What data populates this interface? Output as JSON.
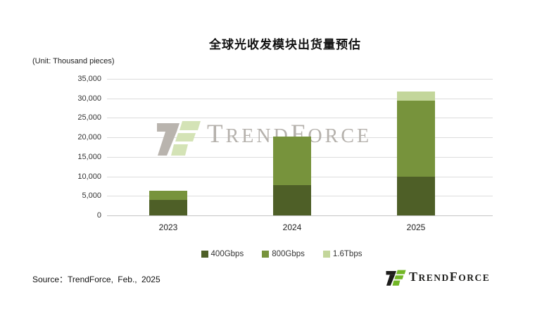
{
  "source_text": "Source：TrendForce, Feb., 2025",
  "watermark": {
    "parts": [
      "T",
      "REND",
      "F",
      "ORCE"
    ]
  },
  "footer_logo": {
    "parts": [
      "T",
      "REND",
      "F",
      "ORCE"
    ]
  },
  "chart_data": {
    "type": "bar",
    "stacked": true,
    "title": "全球光收发模块出货量预估",
    "unit_label": "(Unit: Thousand pieces)",
    "categories": [
      "2023",
      "2024",
      "2025"
    ],
    "series": [
      {
        "name": "400Gbps",
        "color": "#4e5f27",
        "values": [
          4000,
          7800,
          10000
        ]
      },
      {
        "name": "800Gbps",
        "color": "#77933c",
        "values": [
          2400,
          12500,
          19400
        ]
      },
      {
        "name": "1.6Tbps",
        "color": "#c3d69b",
        "values": [
          0,
          0,
          2400
        ]
      }
    ],
    "totals": [
      6400,
      20300,
      31800
    ],
    "ylim": [
      0,
      35000
    ],
    "ytick_step": 5000,
    "yticks": [
      "0",
      "5,000",
      "10,000",
      "15,000",
      "20,000",
      "25,000",
      "30,000",
      "35,000"
    ],
    "grid": true,
    "legend_position": "bottom"
  }
}
